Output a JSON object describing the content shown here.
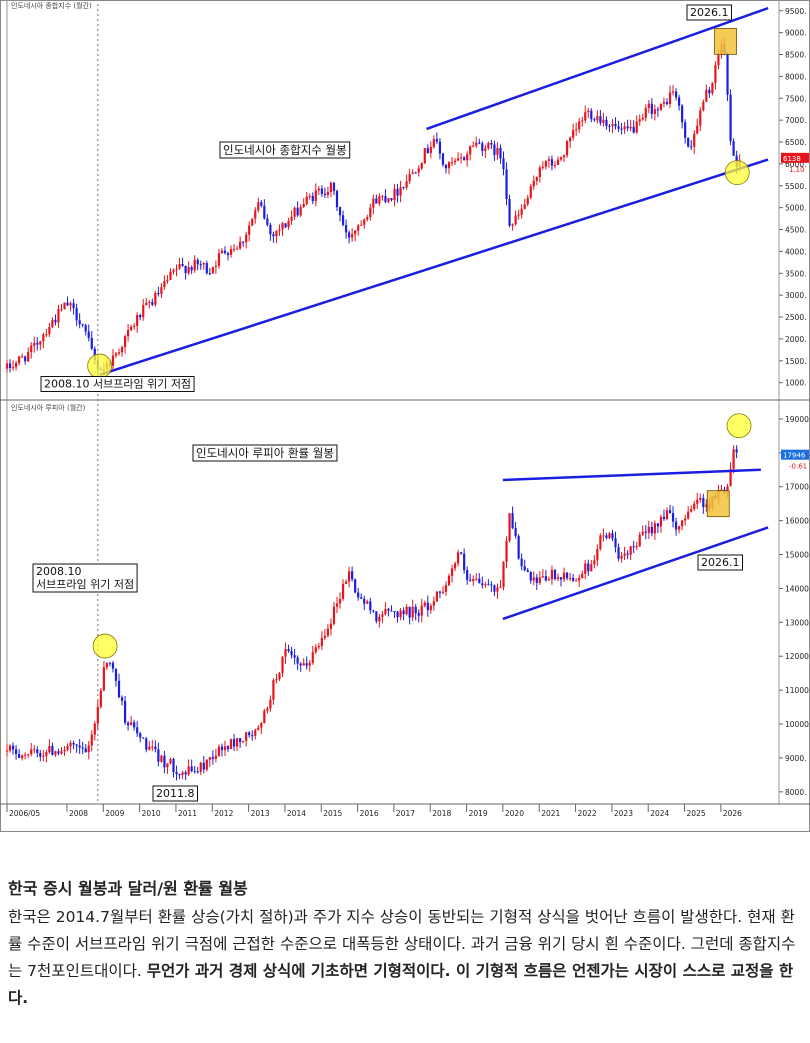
{
  "colors": {
    "up": "#e8141c",
    "down": "#1a1ee0",
    "channel": "#1a1ee0",
    "highlight_yellow": "#ffff33",
    "highlight_orange": "#f2c23a"
  },
  "chart_data": [
    {
      "type": "candlestick",
      "subtitle": "인도네시아 종합지수 (월간)",
      "title": "인도네시아 종합지수 월봉",
      "yticks": [
        1000,
        1500,
        2000,
        2500,
        3000,
        3500,
        4000,
        4500,
        5000,
        5500,
        6000,
        6500,
        7000,
        7500,
        8000,
        8500,
        9000,
        9500
      ],
      "ylim": [
        650,
        9700
      ],
      "last_value_label": "6138",
      "last_change_label": "1.10",
      "price_path": [
        [
          2006.35,
          1320
        ],
        [
          2007.0,
          1700
        ],
        [
          2007.5,
          2300
        ],
        [
          2008.0,
          2800
        ],
        [
          2008.4,
          2400
        ],
        [
          2008.8,
          1400
        ],
        [
          2009.0,
          1320
        ],
        [
          2009.3,
          1600
        ],
        [
          2010.0,
          2550
        ],
        [
          2010.5,
          3000
        ],
        [
          2011.0,
          3600
        ],
        [
          2011.7,
          3700
        ],
        [
          2011.9,
          3550
        ],
        [
          2012.3,
          4000
        ],
        [
          2012.8,
          4200
        ],
        [
          2013.3,
          5100
        ],
        [
          2013.6,
          4400
        ],
        [
          2014.0,
          4600
        ],
        [
          2014.5,
          5100
        ],
        [
          2015.0,
          5400
        ],
        [
          2015.3,
          5450
        ],
        [
          2015.7,
          4300
        ],
        [
          2016.0,
          4600
        ],
        [
          2016.5,
          5200
        ],
        [
          2017.0,
          5300
        ],
        [
          2017.5,
          5800
        ],
        [
          2017.9,
          6300
        ],
        [
          2018.1,
          6600
        ],
        [
          2018.4,
          5900
        ],
        [
          2018.9,
          6100
        ],
        [
          2019.2,
          6500
        ],
        [
          2019.8,
          6300
        ],
        [
          2020.0,
          6100
        ],
        [
          2020.2,
          4540
        ],
        [
          2020.5,
          4900
        ],
        [
          2020.9,
          5600
        ],
        [
          2021.0,
          6000
        ],
        [
          2021.5,
          6000
        ],
        [
          2021.9,
          6600
        ],
        [
          2022.3,
          7200
        ],
        [
          2022.8,
          7000
        ],
        [
          2023.3,
          6700
        ],
        [
          2023.8,
          6900
        ],
        [
          2024.0,
          7300
        ],
        [
          2024.3,
          7200
        ],
        [
          2024.7,
          7700
        ],
        [
          2024.9,
          7100
        ],
        [
          2025.1,
          6300
        ],
        [
          2025.3,
          6800
        ],
        [
          2025.6,
          7600
        ],
        [
          2025.8,
          7900
        ],
        [
          2026.0,
          8800
        ],
        [
          2026.1,
          8500
        ],
        [
          2026.2,
          7300
        ],
        [
          2026.3,
          6300
        ],
        [
          2026.4,
          5900
        ],
        [
          2026.5,
          6138
        ]
      ],
      "channel_upper": [
        [
          2017.9,
          6800
        ],
        [
          2027.3,
          9560
        ]
      ],
      "channel_lower": [
        [
          2008.9,
          1180
        ],
        [
          2027.3,
          6100
        ]
      ],
      "marker_circles": [
        [
          2008.9,
          1380
        ],
        [
          2026.45,
          5800
        ]
      ],
      "marker_box": [
        2026.1,
        8800
      ],
      "annotations": [
        {
          "text": "2026.1",
          "x": 2026.1,
          "y": 9450
        },
        {
          "text": "2008.10 서브프라임 위기 저점",
          "x": 2008.8,
          "y": 890
        }
      ]
    },
    {
      "type": "candlestick",
      "subtitle": "인도네시아 루피아 (월간)",
      "title": "인도네시아 루피아 환률 월봉",
      "yticks": [
        8000,
        9000,
        10000,
        11000,
        12000,
        13000,
        14000,
        15000,
        16000,
        17000,
        18000,
        19000
      ],
      "ylim": [
        7700,
        19500
      ],
      "last_value_label": "17946",
      "last_change_label": "-0.61",
      "price_path": [
        [
          2006.35,
          9200
        ],
        [
          2007.0,
          9100
        ],
        [
          2007.5,
          9200
        ],
        [
          2008.0,
          9300
        ],
        [
          2008.6,
          9200
        ],
        [
          2008.9,
          10800
        ],
        [
          2009.05,
          12000
        ],
        [
          2009.3,
          11500
        ],
        [
          2009.6,
          10200
        ],
        [
          2010.0,
          9600
        ],
        [
          2010.5,
          9000
        ],
        [
          2011.0,
          8700
        ],
        [
          2011.2,
          8550
        ],
        [
          2011.7,
          8700
        ],
        [
          2012.0,
          9100
        ],
        [
          2012.5,
          9400
        ],
        [
          2013.0,
          9650
        ],
        [
          2013.3,
          9800
        ],
        [
          2013.7,
          11200
        ],
        [
          2014.0,
          12100
        ],
        [
          2014.5,
          11600
        ],
        [
          2014.9,
          12300
        ],
        [
          2015.3,
          13200
        ],
        [
          2015.75,
          14500
        ],
        [
          2016.0,
          13800
        ],
        [
          2016.5,
          13200
        ],
        [
          2017.0,
          13300
        ],
        [
          2017.5,
          13300
        ],
        [
          2018.0,
          13500
        ],
        [
          2018.5,
          14300
        ],
        [
          2018.8,
          15100
        ],
        [
          2019.0,
          14200
        ],
        [
          2019.5,
          14100
        ],
        [
          2019.9,
          13900
        ],
        [
          2020.2,
          16300
        ],
        [
          2020.5,
          14600
        ],
        [
          2020.9,
          14100
        ],
        [
          2021.3,
          14400
        ],
        [
          2021.6,
          14300
        ],
        [
          2022.0,
          14300
        ],
        [
          2022.4,
          14700
        ],
        [
          2022.8,
          15700
        ],
        [
          2023.0,
          15400
        ],
        [
          2023.3,
          14800
        ],
        [
          2023.6,
          15200
        ],
        [
          2023.9,
          15600
        ],
        [
          2024.2,
          15900
        ],
        [
          2024.5,
          16300
        ],
        [
          2024.8,
          15600
        ],
        [
          2025.0,
          16200
        ],
        [
          2025.3,
          16600
        ],
        [
          2025.7,
          16500
        ],
        [
          2025.9,
          16800
        ],
        [
          2026.1,
          16900
        ],
        [
          2026.25,
          17400
        ],
        [
          2026.35,
          18200
        ],
        [
          2026.45,
          17946
        ]
      ],
      "channel_upper": [
        [
          2020.0,
          17200
        ],
        [
          2027.1,
          17500
        ]
      ],
      "channel_lower": [
        [
          2020.0,
          13100
        ],
        [
          2027.3,
          15800
        ]
      ],
      "marker_circles": [
        [
          2009.05,
          12300
        ],
        [
          2026.5,
          18800
        ]
      ],
      "marker_box": [
        2025.9,
        16500
      ],
      "annotations": [
        {
          "text": "2008.10\n서브프라임 위기 저점",
          "x": 2008.5,
          "y": 13550
        },
        {
          "text": "2026.1",
          "x": 2026.1,
          "y": 15000
        },
        {
          "text": "2011.8",
          "x": 2011.6,
          "y": 8000
        }
      ]
    }
  ],
  "x_axis": {
    "range": [
      2006.35,
      2027.6
    ],
    "ticks": [
      {
        "label": "2006/05",
        "x": 2006.35
      },
      {
        "label": "2008",
        "x": 2008
      },
      {
        "label": "2009",
        "x": 2009
      },
      {
        "label": "2010",
        "x": 2010
      },
      {
        "label": "2011",
        "x": 2011
      },
      {
        "label": "2012",
        "x": 2012
      },
      {
        "label": "2013",
        "x": 2013
      },
      {
        "label": "2014",
        "x": 2014
      },
      {
        "label": "2015",
        "x": 2015
      },
      {
        "label": "2016",
        "x": 2016
      },
      {
        "label": "2017",
        "x": 2017
      },
      {
        "label": "2018",
        "x": 2018
      },
      {
        "label": "2019",
        "x": 2019
      },
      {
        "label": "2020",
        "x": 2020
      },
      {
        "label": "2021",
        "x": 2021
      },
      {
        "label": "2022",
        "x": 2022
      },
      {
        "label": "2023",
        "x": 2023
      },
      {
        "label": "2024",
        "x": 2024
      },
      {
        "label": "2025",
        "x": 2025
      },
      {
        "label": "2026",
        "x": 2026
      }
    ],
    "crosshair_x": 2008.85
  },
  "caption": {
    "title": "한국 증시 월봉과 달러/원 환률 월봉",
    "body": "한국은 2014.7월부터 환률 상승(가치 절하)과 주가 지수 상승이 동반되는 기형적 상식을 벗어난 흐름이 발생한다. 현재 환률 수준이 서브프라임 위기 극점에 근접한 수준으로 대폭등한 상태이다. 과거 금융 위기 당시 흰 수준이다. 그런데 종합지수는 7천포인트대이다. ",
    "bold": "무언가 과거 경제 상식에 기초하면 기형적이다. 이 기형적 흐름은 언젠가는 시장이 스스로 교정을 한다."
  }
}
